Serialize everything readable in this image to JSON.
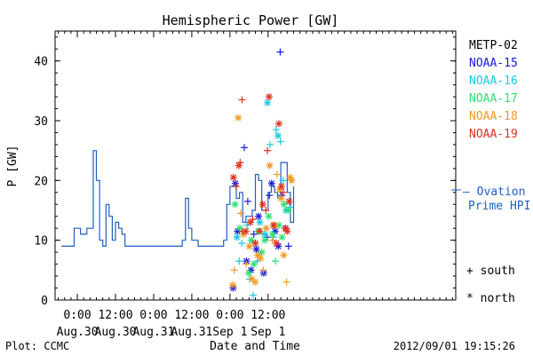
{
  "chart_data": {
    "type": "scatter",
    "title": "Hemispheric Power [GW]",
    "xlabel": "Date and Time",
    "ylabel": "P [GW]",
    "xlim": [
      -7,
      119
    ],
    "ylim": [
      0,
      45
    ],
    "yticks": [
      0,
      10,
      20,
      30,
      40
    ],
    "xticks": [
      {
        "x": 0,
        "time": "0:00",
        "date": "Aug.30"
      },
      {
        "x": 12,
        "time": "12:00",
        "date": "Aug.30"
      },
      {
        "x": 24,
        "time": "0:00",
        "date": "Aug.31"
      },
      {
        "x": 36,
        "time": "12:00",
        "date": "Aug.31"
      },
      {
        "x": 48,
        "time": "0:00",
        "date": "Sep 1"
      },
      {
        "x": 60,
        "time": "12:00",
        "date": "Sep 1"
      }
    ],
    "x_units": "hours since Aug.30 0:00 (2012)",
    "marker_legend": [
      {
        "symbol": "+",
        "label": "south"
      },
      {
        "symbol": "*",
        "label": "north"
      }
    ],
    "footer_left": "Plot: CCMC",
    "footer_right": "2012/09/01  19:15:26",
    "ovation": {
      "label_line1": "— Ovation",
      "label_line2": "Prime HPI",
      "color": "#1f5fbf",
      "steps": [
        [
          -5,
          9
        ],
        [
          -1,
          9
        ],
        [
          -1,
          12
        ],
        [
          1,
          12
        ],
        [
          1,
          11
        ],
        [
          3,
          11
        ],
        [
          3,
          12
        ],
        [
          5,
          12
        ],
        [
          5,
          25
        ],
        [
          6,
          25
        ],
        [
          6,
          20
        ],
        [
          7,
          20
        ],
        [
          7,
          10
        ],
        [
          8,
          10
        ],
        [
          8,
          9
        ],
        [
          9,
          9
        ],
        [
          9,
          16
        ],
        [
          10,
          16
        ],
        [
          10,
          14
        ],
        [
          11,
          14
        ],
        [
          11,
          10
        ],
        [
          12,
          10
        ],
        [
          12,
          13
        ],
        [
          13,
          13
        ],
        [
          13,
          12
        ],
        [
          14,
          12
        ],
        [
          14,
          11
        ],
        [
          15,
          11
        ],
        [
          15,
          9
        ],
        [
          33,
          9
        ],
        [
          33,
          10
        ],
        [
          34,
          10
        ],
        [
          34,
          17
        ],
        [
          35,
          17
        ],
        [
          35,
          12
        ],
        [
          36,
          12
        ],
        [
          36,
          10
        ],
        [
          38,
          10
        ],
        [
          38,
          9
        ],
        [
          46,
          9
        ],
        [
          46,
          10
        ],
        [
          47,
          10
        ],
        [
          47,
          16
        ],
        [
          48,
          16
        ],
        [
          48,
          19
        ],
        [
          50,
          19
        ],
        [
          50,
          17
        ],
        [
          51,
          17
        ],
        [
          51,
          18
        ],
        [
          52,
          18
        ],
        [
          52,
          13
        ],
        [
          53,
          13
        ],
        [
          53,
          14
        ],
        [
          55,
          14
        ],
        [
          55,
          15
        ],
        [
          56,
          15
        ],
        [
          56,
          21
        ],
        [
          57,
          21
        ],
        [
          57,
          20
        ],
        [
          58,
          20
        ],
        [
          58,
          15
        ],
        [
          60,
          15
        ],
        [
          60,
          18
        ],
        [
          61,
          18
        ],
        [
          61,
          19
        ],
        [
          62,
          19
        ],
        [
          62,
          18
        ],
        [
          63,
          18
        ],
        [
          63,
          17
        ],
        [
          64,
          17
        ],
        [
          64,
          23
        ],
        [
          66,
          23
        ],
        [
          66,
          18
        ],
        [
          67,
          18
        ],
        [
          67,
          13
        ],
        [
          68,
          13
        ],
        [
          68,
          19
        ]
      ]
    },
    "series": [
      {
        "name": "METP-02",
        "color": "#000000",
        "points": []
      },
      {
        "name": "NOAA-15",
        "color": "#1a1adb",
        "points": [
          {
            "x": 49.7,
            "y": 19.5,
            "m": "*"
          },
          {
            "x": 50.4,
            "y": 11.5,
            "m": "*"
          },
          {
            "x": 52.5,
            "y": 25.5,
            "m": "+"
          },
          {
            "x": 53.2,
            "y": 6.5,
            "m": "*"
          },
          {
            "x": 53.6,
            "y": 16.5,
            "m": "+"
          },
          {
            "x": 54.6,
            "y": 5.0,
            "m": "*"
          },
          {
            "x": 55.5,
            "y": 11.0,
            "m": "+"
          },
          {
            "x": 56.3,
            "y": 8.5,
            "m": "*"
          },
          {
            "x": 57.0,
            "y": 14.0,
            "m": "*"
          },
          {
            "x": 58.6,
            "y": 4.5,
            "m": "*"
          },
          {
            "x": 59.7,
            "y": 10.5,
            "m": "+"
          },
          {
            "x": 60.4,
            "y": 17.5,
            "m": "+"
          },
          {
            "x": 61.1,
            "y": 19.5,
            "m": "*"
          },
          {
            "x": 62.2,
            "y": 11.5,
            "m": "*"
          },
          {
            "x": 63.2,
            "y": 9.0,
            "m": "*"
          },
          {
            "x": 63.8,
            "y": 41.5,
            "m": "+"
          },
          {
            "x": 64.3,
            "y": 17.5,
            "m": "+"
          },
          {
            "x": 65.5,
            "y": 12.0,
            "m": "*"
          },
          {
            "x": 66.4,
            "y": 9.0,
            "m": "+"
          },
          {
            "x": 49.0,
            "y": 2.0,
            "m": "*"
          }
        ]
      },
      {
        "name": "NOAA-16",
        "color": "#19c9e3",
        "points": [
          {
            "x": 50.2,
            "y": 10.5,
            "m": "*"
          },
          {
            "x": 50.9,
            "y": 6.5,
            "m": "+"
          },
          {
            "x": 51.7,
            "y": 9.5,
            "m": "+"
          },
          {
            "x": 53.4,
            "y": 12.5,
            "m": "+"
          },
          {
            "x": 54.2,
            "y": 3.5,
            "m": "+"
          },
          {
            "x": 55.3,
            "y": 0.8,
            "m": "+"
          },
          {
            "x": 56.6,
            "y": 6.5,
            "m": "+"
          },
          {
            "x": 57.4,
            "y": 13.0,
            "m": "*"
          },
          {
            "x": 58.9,
            "y": 11.0,
            "m": "*"
          },
          {
            "x": 59.8,
            "y": 33.0,
            "m": "*"
          },
          {
            "x": 60.6,
            "y": 26.0,
            "m": "+"
          },
          {
            "x": 61.6,
            "y": 10.5,
            "m": "+"
          },
          {
            "x": 62.5,
            "y": 28.5,
            "m": "+"
          },
          {
            "x": 63.1,
            "y": 27.5,
            "m": "*"
          },
          {
            "x": 63.9,
            "y": 26.5,
            "m": "+"
          },
          {
            "x": 64.7,
            "y": 20.0,
            "m": "+"
          },
          {
            "x": 65.6,
            "y": 15.0,
            "m": "*"
          },
          {
            "x": 66.8,
            "y": 15.5,
            "m": "+"
          }
        ]
      },
      {
        "name": "NOAA-17",
        "color": "#2ee072",
        "points": [
          {
            "x": 49.6,
            "y": 16.0,
            "m": "*"
          },
          {
            "x": 51.1,
            "y": 12.0,
            "m": "*"
          },
          {
            "x": 53.9,
            "y": 4.5,
            "m": "*"
          },
          {
            "x": 54.7,
            "y": 10.0,
            "m": "*"
          },
          {
            "x": 55.5,
            "y": 6.0,
            "m": "*"
          },
          {
            "x": 56.9,
            "y": 11.5,
            "m": "*"
          },
          {
            "x": 58.0,
            "y": 8.0,
            "m": "*"
          },
          {
            "x": 59.0,
            "y": 10.0,
            "m": "*"
          },
          {
            "x": 60.2,
            "y": 14.0,
            "m": "*"
          },
          {
            "x": 61.4,
            "y": 11.0,
            "m": "*"
          },
          {
            "x": 62.3,
            "y": 6.5,
            "m": "+"
          },
          {
            "x": 63.4,
            "y": 12.5,
            "m": "*"
          },
          {
            "x": 64.4,
            "y": 10.5,
            "m": "*"
          },
          {
            "x": 65.0,
            "y": 16.0,
            "m": "*"
          },
          {
            "x": 66.3,
            "y": 15.0,
            "m": "*"
          }
        ]
      },
      {
        "name": "NOAA-18",
        "color": "#f09a23",
        "points": [
          {
            "x": 48.9,
            "y": 2.5,
            "m": "*"
          },
          {
            "x": 49.4,
            "y": 5.0,
            "m": "+"
          },
          {
            "x": 50.6,
            "y": 30.5,
            "m": "*"
          },
          {
            "x": 51.4,
            "y": 14.5,
            "m": "+"
          },
          {
            "x": 52.3,
            "y": 11.0,
            "m": "*"
          },
          {
            "x": 53.1,
            "y": 6.0,
            "m": "+"
          },
          {
            "x": 54.1,
            "y": 9.0,
            "m": "*"
          },
          {
            "x": 54.9,
            "y": 3.5,
            "m": "*"
          },
          {
            "x": 55.9,
            "y": 3.0,
            "m": "*"
          },
          {
            "x": 56.7,
            "y": 7.5,
            "m": "*"
          },
          {
            "x": 57.6,
            "y": 7.0,
            "m": "*"
          },
          {
            "x": 58.5,
            "y": 5.0,
            "m": "+"
          },
          {
            "x": 59.4,
            "y": 12.0,
            "m": "*"
          },
          {
            "x": 60.5,
            "y": 22.5,
            "m": "*"
          },
          {
            "x": 61.3,
            "y": 10.0,
            "m": "+"
          },
          {
            "x": 62.0,
            "y": 12.5,
            "m": "*"
          },
          {
            "x": 62.8,
            "y": 21.0,
            "m": "+"
          },
          {
            "x": 63.6,
            "y": 18.5,
            "m": "*"
          },
          {
            "x": 64.1,
            "y": 17.0,
            "m": "*"
          },
          {
            "x": 64.9,
            "y": 7.5,
            "m": "*"
          },
          {
            "x": 65.8,
            "y": 3.0,
            "m": "+"
          },
          {
            "x": 66.9,
            "y": 20.5,
            "m": "*"
          },
          {
            "x": 67.4,
            "y": 20.0,
            "m": "*"
          }
        ]
      },
      {
        "name": "NOAA-19",
        "color": "#e0301e",
        "points": [
          {
            "x": 49.1,
            "y": 20.5,
            "m": "*"
          },
          {
            "x": 49.9,
            "y": 19.0,
            "m": "+"
          },
          {
            "x": 50.8,
            "y": 22.5,
            "m": "*"
          },
          {
            "x": 51.2,
            "y": 23.0,
            "m": "+"
          },
          {
            "x": 51.8,
            "y": 33.5,
            "m": "+"
          },
          {
            "x": 52.0,
            "y": 11.5,
            "m": "+"
          },
          {
            "x": 53.0,
            "y": 11.5,
            "m": "*"
          },
          {
            "x": 54.4,
            "y": 13.0,
            "m": "*"
          },
          {
            "x": 55.2,
            "y": 13.5,
            "m": "+"
          },
          {
            "x": 56.0,
            "y": 9.5,
            "m": "*"
          },
          {
            "x": 57.3,
            "y": 11.5,
            "m": "*"
          },
          {
            "x": 58.3,
            "y": 16.0,
            "m": "*"
          },
          {
            "x": 59.3,
            "y": 15.0,
            "m": "+"
          },
          {
            "x": 59.8,
            "y": 25.0,
            "m": "+"
          },
          {
            "x": 60.3,
            "y": 34.0,
            "m": "*"
          },
          {
            "x": 61.7,
            "y": 12.5,
            "m": "*"
          },
          {
            "x": 62.6,
            "y": 9.5,
            "m": "*"
          },
          {
            "x": 63.4,
            "y": 29.5,
            "m": "*"
          },
          {
            "x": 64.2,
            "y": 19.0,
            "m": "*"
          },
          {
            "x": 64.8,
            "y": 18.0,
            "m": "+"
          },
          {
            "x": 65.4,
            "y": 12.0,
            "m": "*"
          },
          {
            "x": 66.0,
            "y": 11.5,
            "m": "*"
          },
          {
            "x": 66.6,
            "y": 16.5,
            "m": "*"
          }
        ]
      }
    ]
  }
}
